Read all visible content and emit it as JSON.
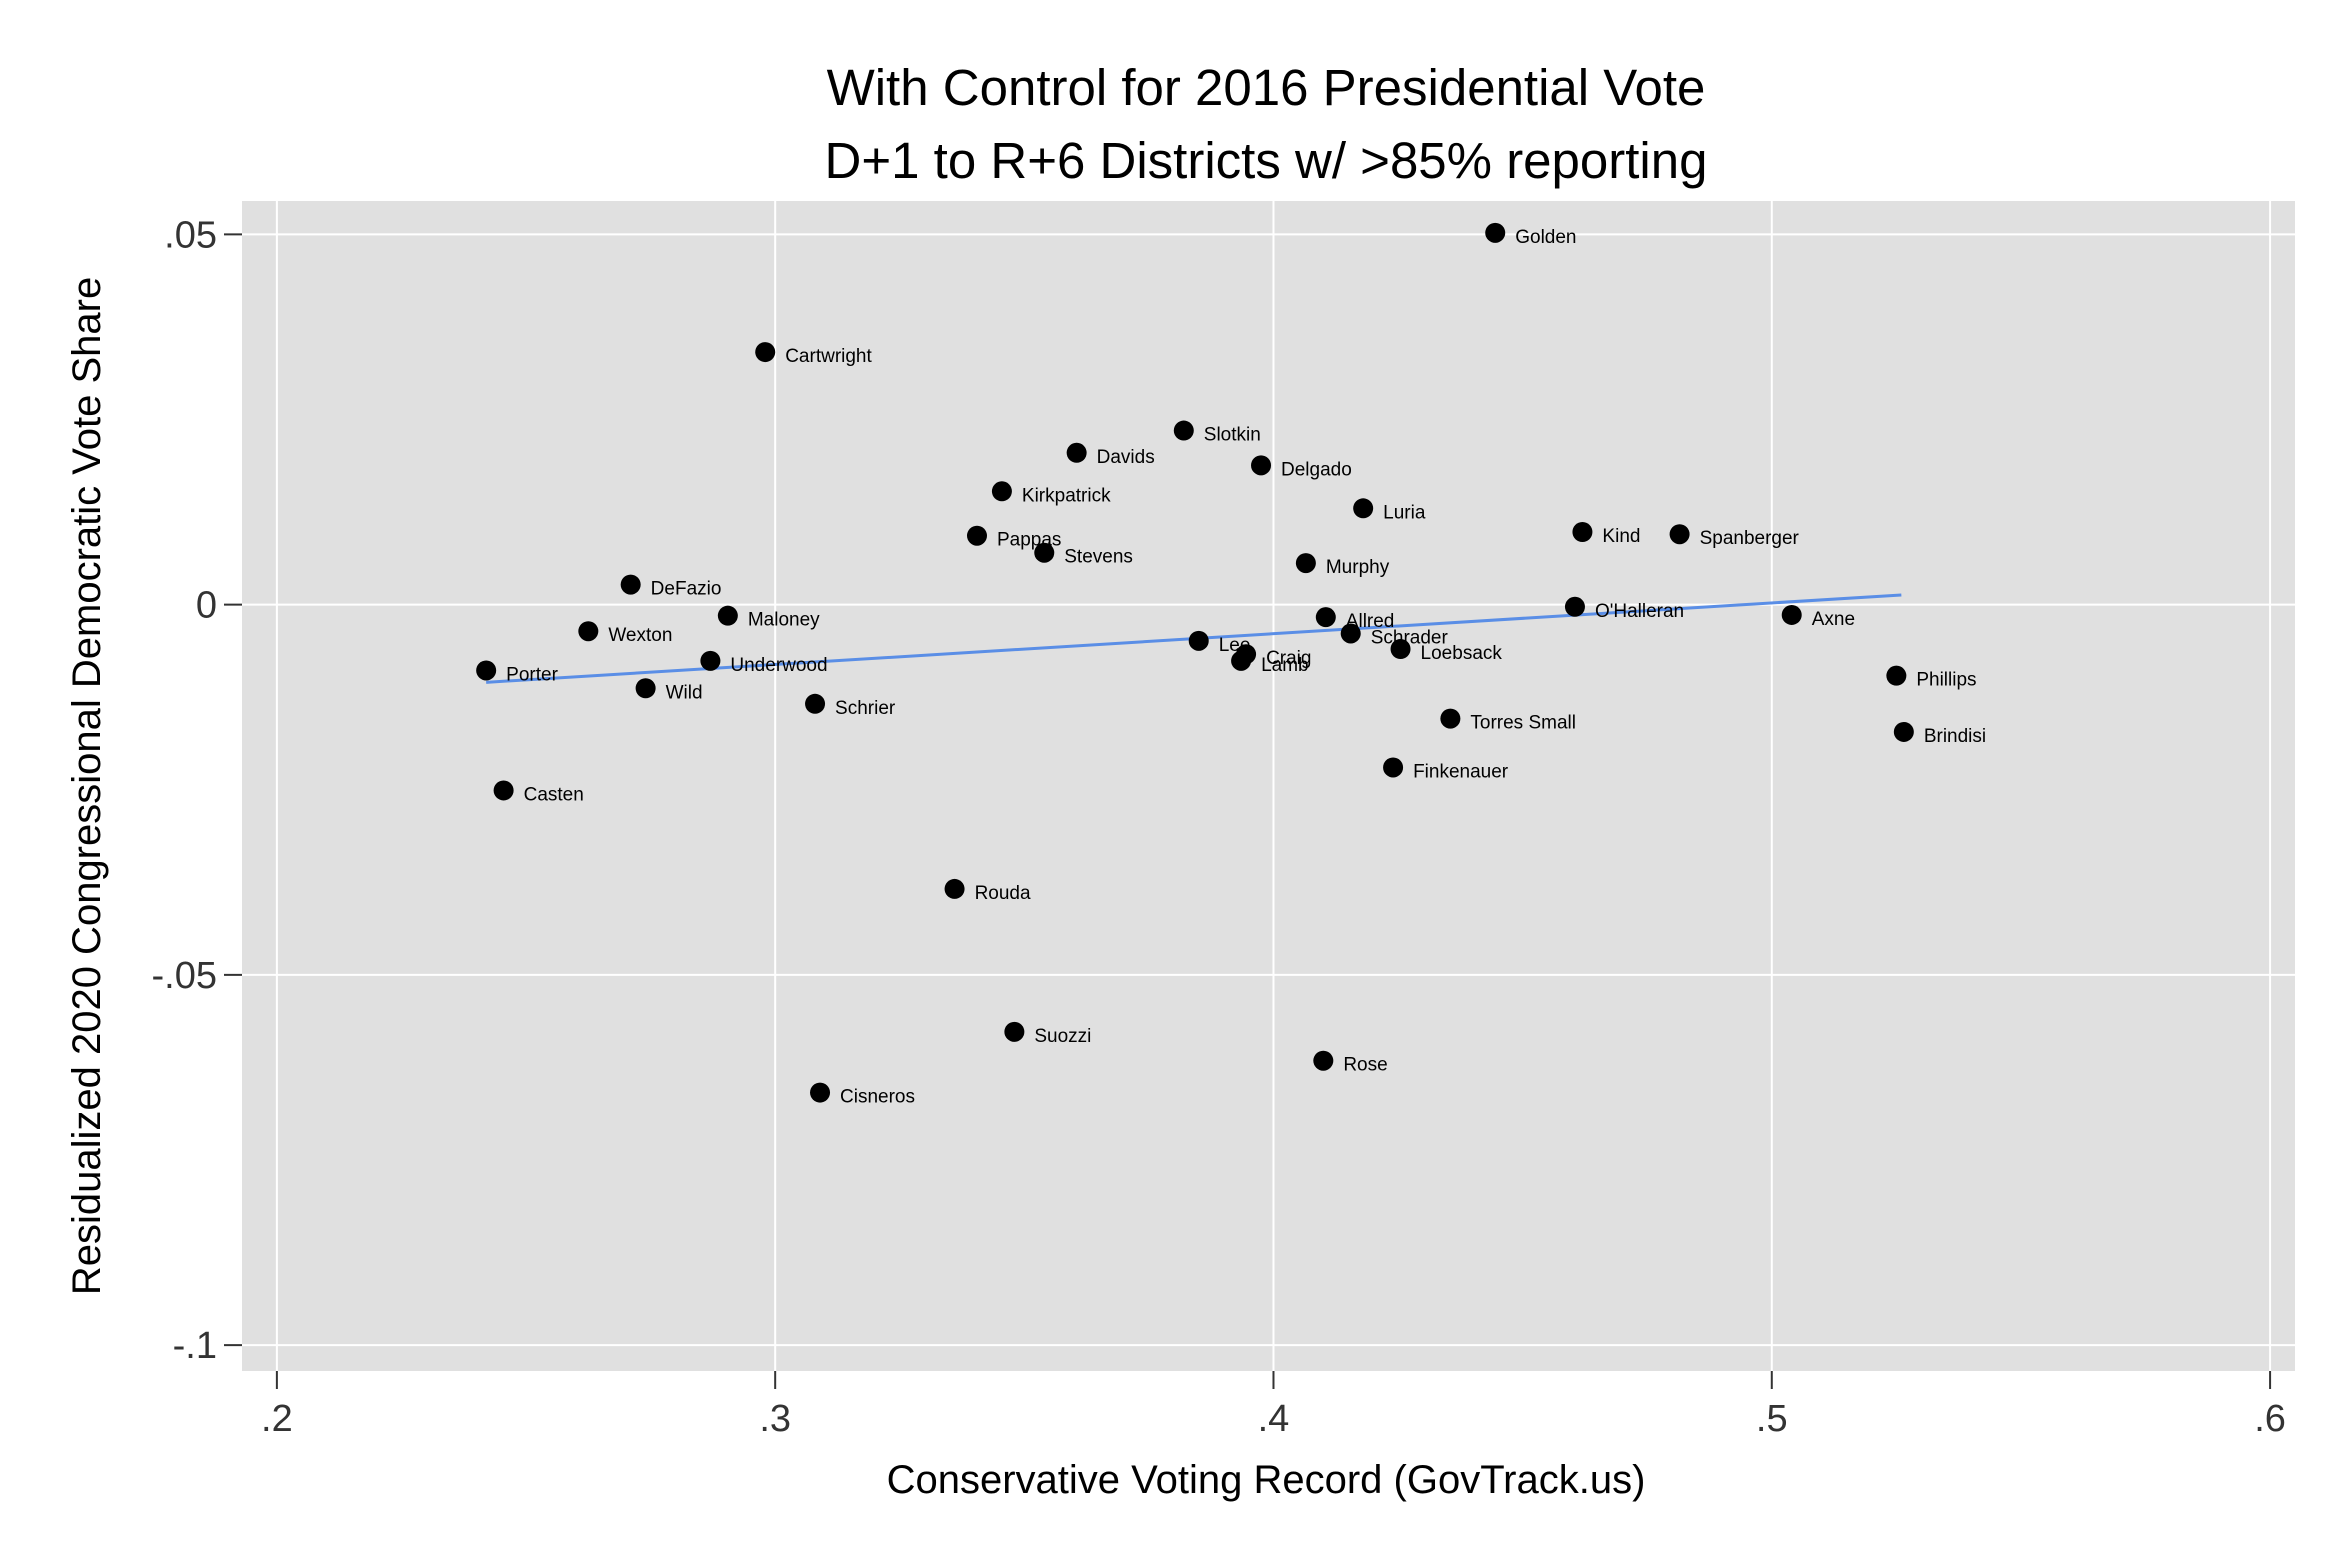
{
  "chart_data": {
    "type": "scatter",
    "title_lines": [
      "With Control for 2016 Presidential Vote",
      "D+1 to R+6 Districts w/ >85% reporting"
    ],
    "xlabel": "Conservative Voting Record (GovTrack.us)",
    "ylabel": "Residualized 2020 Congressional Democratic Vote Share",
    "xlim": [
      0.193,
      0.605
    ],
    "ylim": [
      -0.1035,
      0.0545
    ],
    "x_ticks": [
      {
        "value": 0.2,
        "label": ".2"
      },
      {
        "value": 0.3,
        "label": ".3"
      },
      {
        "value": 0.4,
        "label": ".4"
      },
      {
        "value": 0.5,
        "label": ".5"
      },
      {
        "value": 0.6,
        "label": ".6"
      }
    ],
    "y_ticks": [
      {
        "value": 0.05,
        "label": ".05"
      },
      {
        "value": 0,
        "label": "0"
      },
      {
        "value": -0.05,
        "label": "-.05"
      },
      {
        "value": -0.1,
        "label": "-.1"
      }
    ],
    "grid": true,
    "fit_line": {
      "x": [
        0.242,
        0.526
      ],
      "y": [
        -0.0105,
        0.0013
      ],
      "color": "#5a8ee6"
    },
    "colors": {
      "plot_bg": "#e0e0e0",
      "grid": "#ffffff",
      "marker": "#000000",
      "fit": "#5a8ee6"
    },
    "points": [
      {
        "name": "Golden",
        "x": 0.4445,
        "y": 0.0502
      },
      {
        "name": "Cartwright",
        "x": 0.298,
        "y": 0.0341
      },
      {
        "name": "Slotkin",
        "x": 0.382,
        "y": 0.0235
      },
      {
        "name": "Davids",
        "x": 0.3605,
        "y": 0.0205
      },
      {
        "name": "Delgado",
        "x": 0.3975,
        "y": 0.0188
      },
      {
        "name": "Kirkpatrick",
        "x": 0.3455,
        "y": 0.0153
      },
      {
        "name": "Luria",
        "x": 0.418,
        "y": 0.013
      },
      {
        "name": "Pappas",
        "x": 0.3405,
        "y": 0.0093
      },
      {
        "name": "Kind",
        "x": 0.462,
        "y": 0.0098
      },
      {
        "name": "Spanberger",
        "x": 0.4815,
        "y": 0.0095
      },
      {
        "name": "Stevens",
        "x": 0.354,
        "y": 0.007
      },
      {
        "name": "Murphy",
        "x": 0.4065,
        "y": 0.0056
      },
      {
        "name": "DeFazio",
        "x": 0.271,
        "y": 0.0027
      },
      {
        "name": "Maloney",
        "x": 0.2905,
        "y": -0.0015
      },
      {
        "name": "Allred",
        "x": 0.4105,
        "y": -0.0017
      },
      {
        "name": "O'Halleran",
        "x": 0.4605,
        "y": -0.0003
      },
      {
        "name": "Axne",
        "x": 0.504,
        "y": -0.0014
      },
      {
        "name": "Wexton",
        "x": 0.2625,
        "y": -0.0036
      },
      {
        "name": "Schrader",
        "x": 0.4155,
        "y": -0.0039
      },
      {
        "name": "Lee",
        "x": 0.385,
        "y": -0.0049
      },
      {
        "name": "Loebsack",
        "x": 0.4255,
        "y": -0.006
      },
      {
        "name": "Craig",
        "x": 0.3945,
        "y": -0.0067
      },
      {
        "name": "Lamb",
        "x": 0.3935,
        "y": -0.0076
      },
      {
        "name": "Underwood",
        "x": 0.287,
        "y": -0.0076
      },
      {
        "name": "Porter",
        "x": 0.242,
        "y": -0.0089
      },
      {
        "name": "Phillips",
        "x": 0.525,
        "y": -0.0096
      },
      {
        "name": "Wild",
        "x": 0.274,
        "y": -0.0113
      },
      {
        "name": "Schrier",
        "x": 0.308,
        "y": -0.0134
      },
      {
        "name": "Torres Small",
        "x": 0.4355,
        "y": -0.0154
      },
      {
        "name": "Brindisi",
        "x": 0.5265,
        "y": -0.0172
      },
      {
        "name": "Finkenauer",
        "x": 0.424,
        "y": -0.022
      },
      {
        "name": "Casten",
        "x": 0.2455,
        "y": -0.0251
      },
      {
        "name": "Rouda",
        "x": 0.336,
        "y": -0.0384
      },
      {
        "name": "Suozzi",
        "x": 0.348,
        "y": -0.0577
      },
      {
        "name": "Rose",
        "x": 0.41,
        "y": -0.0616
      },
      {
        "name": "Cisneros",
        "x": 0.309,
        "y": -0.0659
      }
    ]
  }
}
